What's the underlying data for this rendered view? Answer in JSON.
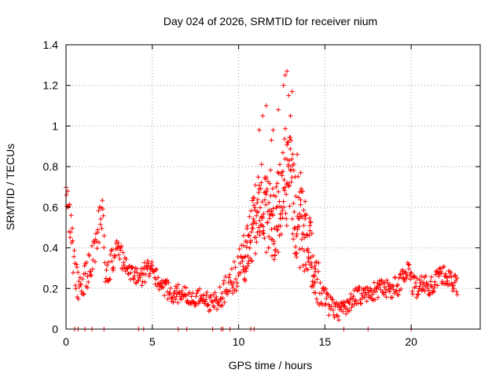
{
  "chart_data": {
    "type": "scatter",
    "title": "Day 024 of 2026, SRMTID for receiver nium",
    "xlabel": "GPS time / hours",
    "ylabel": "SRMTID / TECUs",
    "xlim": [
      0,
      24
    ],
    "ylim": [
      0,
      1.4
    ],
    "xticks": [
      0,
      5,
      10,
      15,
      20
    ],
    "yticks": [
      0,
      0.2,
      0.4,
      0.6,
      0.8,
      1,
      1.2,
      1.4
    ],
    "xtick_labels": [
      "0",
      "5",
      "10",
      "15",
      "20"
    ],
    "ytick_labels": [
      "0",
      "0.2",
      "0.4",
      "0.6",
      "0.8",
      "1",
      "1.2",
      "1.4"
    ],
    "grid": true,
    "marker": "+",
    "color": "#ff0000",
    "trend_anchors": [
      [
        0.0,
        0.76
      ],
      [
        0.2,
        0.55
      ],
      [
        0.5,
        0.3
      ],
      [
        0.8,
        0.18
      ],
      [
        1.0,
        0.22
      ],
      [
        1.3,
        0.3
      ],
      [
        1.6,
        0.38
      ],
      [
        1.9,
        0.5
      ],
      [
        2.1,
        0.58
      ],
      [
        2.3,
        0.25
      ],
      [
        2.6,
        0.33
      ],
      [
        3.0,
        0.38
      ],
      [
        3.4,
        0.34
      ],
      [
        3.8,
        0.28
      ],
      [
        4.2,
        0.25
      ],
      [
        4.6,
        0.28
      ],
      [
        5.0,
        0.3
      ],
      [
        5.4,
        0.22
      ],
      [
        5.8,
        0.2
      ],
      [
        6.3,
        0.17
      ],
      [
        6.8,
        0.18
      ],
      [
        7.3,
        0.14
      ],
      [
        7.8,
        0.16
      ],
      [
        8.3,
        0.13
      ],
      [
        8.8,
        0.15
      ],
      [
        9.3,
        0.2
      ],
      [
        9.7,
        0.25
      ],
      [
        10.1,
        0.32
      ],
      [
        10.5,
        0.38
      ],
      [
        10.9,
        0.52
      ],
      [
        11.3,
        0.62
      ],
      [
        11.7,
        0.58
      ],
      [
        12.1,
        0.55
      ],
      [
        12.5,
        0.68
      ],
      [
        12.9,
        0.8
      ],
      [
        13.3,
        0.55
      ],
      [
        13.7,
        0.5
      ],
      [
        14.1,
        0.4
      ],
      [
        14.5,
        0.26
      ],
      [
        14.9,
        0.16
      ],
      [
        15.4,
        0.1
      ],
      [
        15.8,
        0.08
      ],
      [
        16.3,
        0.12
      ],
      [
        16.8,
        0.16
      ],
      [
        17.3,
        0.17
      ],
      [
        17.8,
        0.18
      ],
      [
        18.3,
        0.22
      ],
      [
        18.8,
        0.2
      ],
      [
        19.3,
        0.22
      ],
      [
        19.8,
        0.27
      ],
      [
        20.3,
        0.2
      ],
      [
        20.8,
        0.21
      ],
      [
        21.3,
        0.23
      ],
      [
        21.8,
        0.27
      ],
      [
        22.3,
        0.24
      ],
      [
        22.7,
        0.21
      ]
    ],
    "spread_anchors": [
      [
        0.0,
        0.1
      ],
      [
        1.0,
        0.08
      ],
      [
        2.0,
        0.09
      ],
      [
        3.0,
        0.06
      ],
      [
        5.0,
        0.05
      ],
      [
        8.0,
        0.04
      ],
      [
        9.5,
        0.07
      ],
      [
        10.8,
        0.16
      ],
      [
        12.0,
        0.24
      ],
      [
        13.0,
        0.26
      ],
      [
        14.0,
        0.18
      ],
      [
        15.0,
        0.06
      ],
      [
        16.0,
        0.04
      ],
      [
        20.0,
        0.06
      ],
      [
        22.7,
        0.05
      ]
    ],
    "zero_markers_x": [
      0.5,
      0.7,
      1.1,
      1.5,
      2.2,
      4.2,
      4.5,
      6.5,
      7.0,
      8.5,
      9.0,
      9.1,
      9.5,
      10.7,
      10.9,
      16.1,
      17.5,
      20.0
    ]
  }
}
